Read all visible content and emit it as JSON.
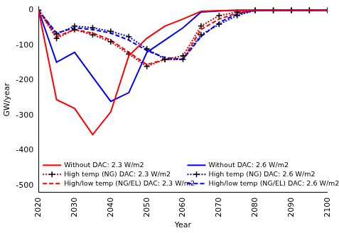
{
  "chart_data": {
    "type": "line",
    "x_label": "Year",
    "y_label": "GW/year",
    "x": [
      2020,
      2025,
      2030,
      2035,
      2040,
      2045,
      2050,
      2055,
      2060,
      2065,
      2070,
      2075,
      2080,
      2085,
      2090,
      2095,
      2100
    ],
    "xlim": [
      2020,
      2100
    ],
    "xticks": [
      2020,
      2030,
      2040,
      2050,
      2060,
      2070,
      2080,
      2090,
      2100
    ],
    "ylim": [
      -520,
      10
    ],
    "yticks": [
      -500,
      -400,
      -300,
      -200,
      -100,
      0
    ],
    "grid": false,
    "legend": "bottom",
    "series": [
      {
        "name": "Without DAC: 2.3 W/m2",
        "color": "#ff0000",
        "line_style": "solid",
        "marker": "none",
        "values": [
          0,
          -255,
          -280,
          -355,
          -290,
          -130,
          -80,
          -45,
          -25,
          -3,
          -1,
          0,
          0,
          0,
          0,
          0,
          0
        ]
      },
      {
        "name": "Without DAC: 2.6 W/m2",
        "color": "#0000ff",
        "line_style": "solid",
        "marker": "none",
        "values": [
          0,
          -148,
          -120,
          -190,
          -260,
          -235,
          -120,
          -85,
          -50,
          -5,
          -2,
          0,
          0,
          0,
          0,
          0,
          0
        ]
      },
      {
        "name": "High temp (NG) DAC: 2.3 W/m2",
        "color": "#cc0000",
        "line_style": "dotted",
        "marker": "cross",
        "values": [
          0,
          -80,
          -55,
          -70,
          -90,
          -125,
          -160,
          -140,
          -130,
          -45,
          -15,
          -5,
          0,
          0,
          0,
          0,
          0
        ]
      },
      {
        "name": "High temp (NG) DAC: 2.6 W/m2",
        "color": "#0000cc",
        "line_style": "dotted",
        "marker": "cross",
        "values": [
          0,
          -68,
          -45,
          -50,
          -60,
          -75,
          -110,
          -140,
          -140,
          -70,
          -40,
          -15,
          0,
          0,
          0,
          0,
          0
        ]
      },
      {
        "name": "High/low temp (NG/EL) DAC: 2.3 W/m2",
        "color": "#ff0000",
        "line_style": "dashed",
        "marker": "none",
        "values": [
          0,
          -75,
          -55,
          -65,
          -85,
          -120,
          -155,
          -140,
          -140,
          -55,
          -25,
          -8,
          0,
          0,
          0,
          0,
          0
        ]
      },
      {
        "name": "High/low temp (NG/EL) DAC: 2.6 W/m2",
        "color": "#0000ff",
        "line_style": "dashed",
        "marker": "none",
        "values": [
          0,
          -65,
          -50,
          -55,
          -65,
          -85,
          -115,
          -135,
          -140,
          -75,
          -35,
          -10,
          -1,
          0,
          0,
          0,
          0
        ]
      }
    ]
  }
}
